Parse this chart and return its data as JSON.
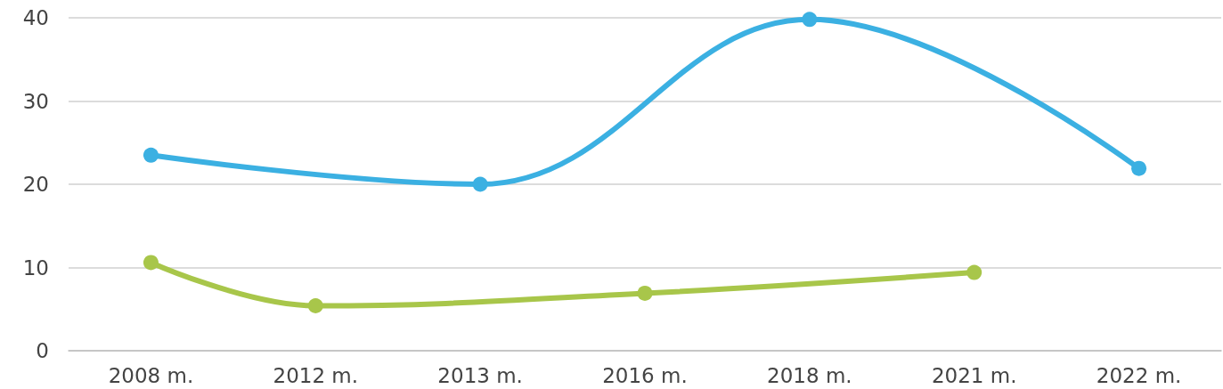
{
  "chart_data": {
    "type": "line",
    "categories": [
      "2008 m.",
      "2012 m.",
      "2013 m.",
      "2016 m.",
      "2018 m.",
      "2021 m.",
      "2022 m."
    ],
    "series": [
      {
        "color": "#3bb0e2",
        "values": [
          23.5,
          null,
          20,
          null,
          39.8,
          null,
          21.9
        ]
      },
      {
        "color": "#a8c64a",
        "values": [
          10.6,
          5.4,
          null,
          6.9,
          null,
          9.4,
          null
        ]
      }
    ],
    "ylim": [
      0,
      40
    ],
    "yticks": [
      0,
      10,
      20,
      30,
      40
    ],
    "grid": "y",
    "marker": "circle",
    "line_style": "solid"
  }
}
